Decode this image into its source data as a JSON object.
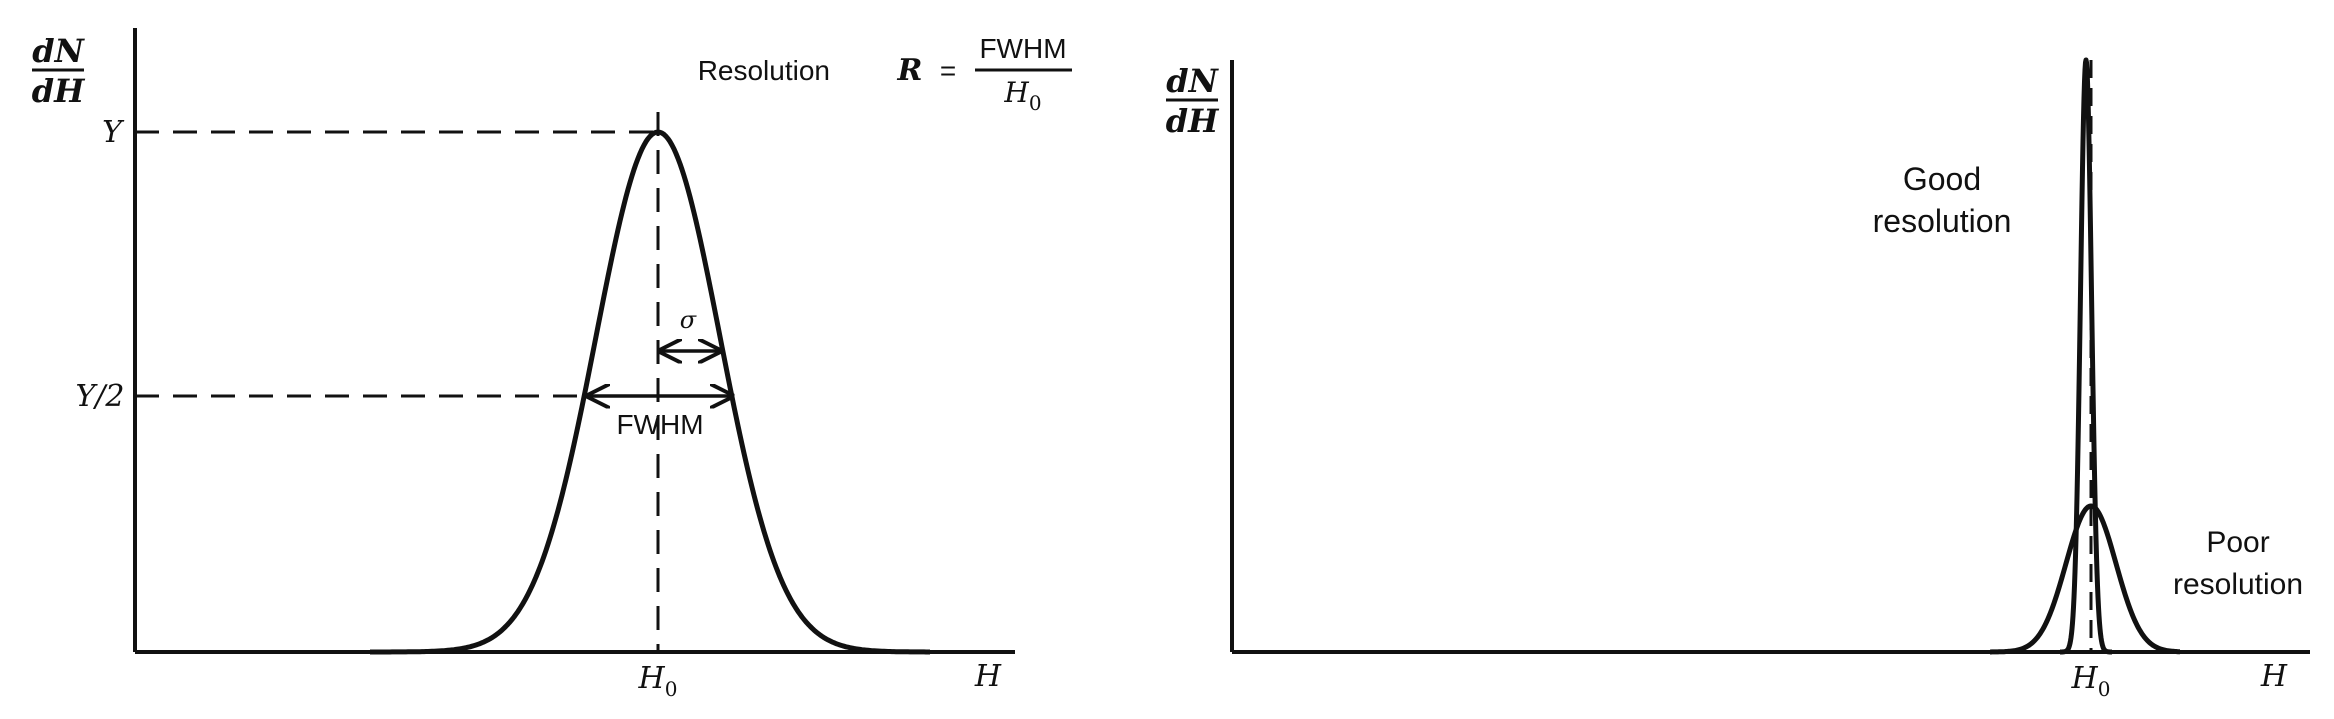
{
  "left_panel": {
    "y_axis_label_top": "dN",
    "y_axis_label_bottom": "dH",
    "x_axis_label": "H",
    "peak_tick_label": "H0",
    "y_peak_label": "Y",
    "y_half_label": "Y/2",
    "sigma_label": "σ",
    "fwhm_label": "FWHM",
    "formula_prefix": "Resolution",
    "formula_symbol": "R",
    "formula_equals": "=",
    "formula_numerator": "FWHM",
    "formula_denominator": "H0"
  },
  "right_panel": {
    "y_axis_label_top": "dN",
    "y_axis_label_bottom": "dH",
    "x_axis_label": "H",
    "peak_tick_label": "H0",
    "good_label_line1": "Good",
    "good_label_line2": "resolution",
    "poor_label_line1": "Poor",
    "poor_label_line2": "resolution"
  }
}
